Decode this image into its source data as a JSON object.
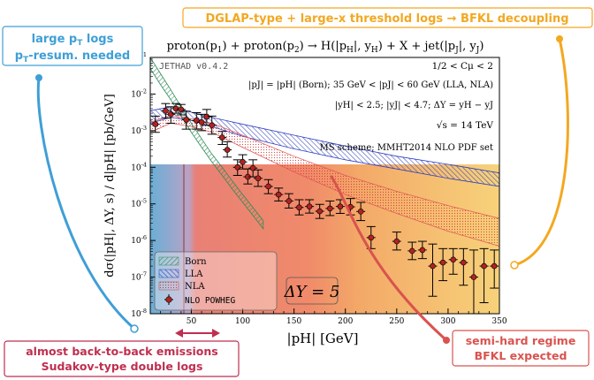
{
  "callouts": {
    "top_right": "DGLAP-type + large-x threshold logs → BFKL decoupling",
    "top_left": [
      "large p",
      "T",
      " logs"
    ],
    "top_left_line2": [
      "p",
      "T",
      "-resum. needed"
    ],
    "bottom_left": [
      "almost back-to-back emissions",
      "Sudakov-type double logs"
    ],
    "bottom_right": [
      "semi-hard regime",
      "BFKL expected"
    ]
  },
  "colors": {
    "blue_callout": "#3f9fd6",
    "orange_callout": "#f3a821",
    "red_callout": "#d9534f",
    "pink_callout": "#bf2f4f",
    "born": "#2e8b57",
    "lla": "#2f3fbf",
    "nla": "#e05a5a",
    "points": "#b22222"
  },
  "chart_data": {
    "type": "scatter",
    "title": "proton(p1) + proton(p2) → H(|pH|, yH) + X + jet(|pJ|, yJ)",
    "xlabel": "|pH| [GeV]",
    "ylabel": "dσ(|pH|, ΔY, s) / d|pH| [pb/GeV]",
    "xlim": [
      10,
      350
    ],
    "ylim": [
      1e-08,
      0.1
    ],
    "yscale": "log",
    "xticks": [
      50,
      100,
      150,
      200,
      250,
      300,
      350
    ],
    "yticks": [
      "10^-8",
      "10^-7",
      "10^-6",
      "10^-5",
      "10^-4",
      "10^-3",
      "10^-2",
      "10^-1"
    ],
    "tag": "JETHAD v0.4.2",
    "annotations": [
      "1/2 < Cμ < 2",
      "|pJ| = |pH| (Born); 35 GeV < |pJ| < 60 GeV (LLA, NLA)",
      "|yH| < 2.5; |yJ| < 4.7; ΔY = yH − yJ",
      "√s = 14 TeV",
      "MS scheme; MMHT2014 NLO PDF set"
    ],
    "delta_y_label": "ΔY = 5",
    "legend": [
      "Born",
      "LLA",
      "NLA",
      "NLO POWHEG"
    ],
    "series": [
      {
        "name": "Born",
        "x": [
          10,
          20,
          30,
          40,
          50,
          60,
          70,
          80,
          90,
          100,
          110,
          120
        ],
        "low": [
          0.05,
          0.018,
          0.007,
          0.0025,
          0.0009,
          0.00035,
          0.00014,
          6e-05,
          2.5e-05,
          1.1e-05,
          4.8e-06,
          2.1e-06
        ],
        "high": [
          0.1,
          0.036,
          0.013,
          0.0045,
          0.0016,
          0.0006,
          0.00023,
          0.0001,
          4.2e-05,
          1.8e-05,
          8e-06,
          3.5e-06
        ]
      },
      {
        "name": "LLA",
        "x": [
          10,
          30,
          50,
          70,
          100,
          150,
          200,
          250,
          300,
          350
        ],
        "low": [
          0.0016,
          0.0023,
          0.0019,
          0.0013,
          0.0007,
          0.00032,
          0.00016,
          9e-05,
          5e-05,
          3e-05
        ],
        "high": [
          0.0035,
          0.0045,
          0.0032,
          0.0023,
          0.0015,
          0.00075,
          0.00038,
          0.0002,
          0.00012,
          7e-05
        ]
      },
      {
        "name": "NLA",
        "x": [
          10,
          30,
          50,
          70,
          100,
          150,
          200,
          250,
          300,
          350
        ],
        "low": [
          0.0009,
          0.0016,
          0.0013,
          0.0009,
          0.00035,
          7.5e-05,
          1.8e-05,
          5.5e-06,
          1.8e-06,
          7e-07
        ],
        "high": [
          0.0017,
          0.0026,
          0.0021,
          0.0016,
          0.00075,
          0.0002,
          6e-05,
          2.2e-05,
          9e-06,
          4e-06
        ]
      },
      {
        "name": "NLO POWHEG",
        "x": [
          15,
          25,
          30,
          35,
          40,
          45,
          55,
          60,
          65,
          70,
          80,
          85,
          95,
          100,
          105,
          110,
          115,
          125,
          135,
          145,
          155,
          165,
          175,
          185,
          195,
          205,
          215,
          225,
          250,
          265,
          275,
          285,
          295,
          305,
          315,
          325,
          335,
          345
        ],
        "y": [
          0.0015,
          0.0035,
          0.0028,
          0.004,
          0.0038,
          0.002,
          0.0019,
          0.0017,
          0.0024,
          0.0014,
          0.00065,
          0.0003,
          0.0001,
          0.00014,
          5.5e-05,
          9.5e-05,
          5e-05,
          3e-05,
          1.8e-05,
          1.2e-05,
          8e-06,
          8.5e-06,
          6.3e-06,
          7.5e-06,
          8.5e-06,
          8.3e-06,
          6.2e-06,
          1.2e-06,
          9.5e-07,
          5.2e-07,
          5.5e-07,
          2e-07,
          2.5e-07,
          3e-07,
          2.5e-07,
          1e-07,
          2e-07,
          2e-07
        ],
        "err_low": [
          0.0009,
          0.0022,
          0.0016,
          0.003,
          0.0027,
          0.0011,
          0.0011,
          0.001,
          0.0014,
          0.0008,
          0.00042,
          0.00019,
          6e-05,
          9e-05,
          3.5e-05,
          5.5e-05,
          3e-05,
          1.9e-05,
          1.2e-05,
          7.7e-06,
          5e-06,
          5.6e-06,
          4e-06,
          4.8e-06,
          5.5e-06,
          5e-06,
          3.5e-06,
          6e-07,
          5.5e-07,
          3e-07,
          3.2e-07,
          3e-08,
          8e-08,
          1.2e-07,
          6e-08,
          1e-08,
          2e-08,
          5e-08
        ],
        "err_high": [
          0.0025,
          0.0055,
          0.0045,
          0.0055,
          0.0052,
          0.0034,
          0.0031,
          0.0028,
          0.0038,
          0.0025,
          0.00095,
          0.0005,
          0.00016,
          0.00022,
          9e-05,
          0.00016,
          8.5e-05,
          4.6e-05,
          2.7e-05,
          1.9e-05,
          1.3e-05,
          1.3e-05,
          9.7e-06,
          1.2e-05,
          1.3e-05,
          1.4e-05,
          1.1e-05,
          2.4e-06,
          1.7e-06,
          9e-07,
          9.5e-07,
          8e-07,
          6e-07,
          6e-07,
          6e-07,
          5.5e-07,
          6e-07,
          5.5e-07
        ]
      }
    ]
  }
}
